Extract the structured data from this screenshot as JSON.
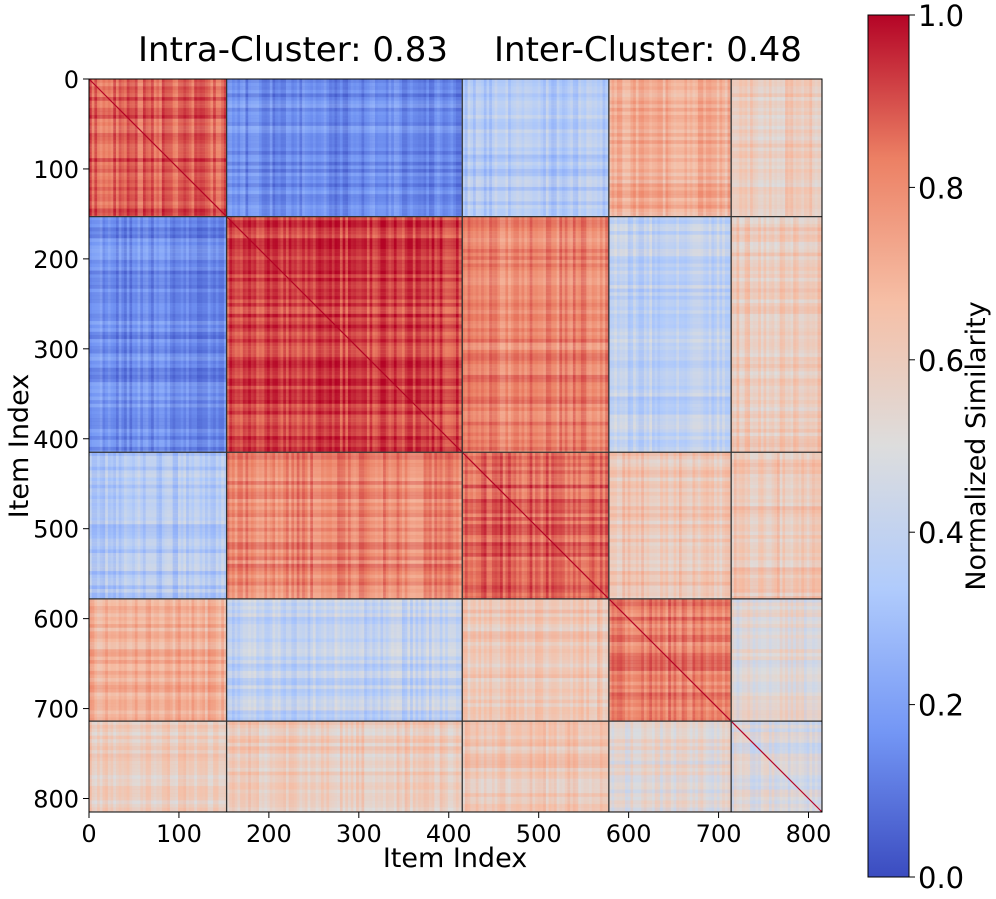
{
  "chart_data": {
    "type": "heatmap",
    "title_left": "Intra-Cluster: 0.83",
    "title_right": "Inter-Cluster: 0.48",
    "xlabel": "Item Index",
    "ylabel": "Item Index",
    "n_items": 815,
    "xlim": [
      0,
      815
    ],
    "ylim": [
      815,
      0
    ],
    "x_ticks": [
      "0",
      "100",
      "200",
      "300",
      "400",
      "500",
      "600",
      "700",
      "800"
    ],
    "y_ticks": [
      "0",
      "100",
      "200",
      "300",
      "400",
      "500",
      "600",
      "700",
      "800"
    ],
    "cluster_boundaries": [
      0,
      153,
      415,
      578,
      714,
      815
    ],
    "block_mean_similarity": [
      [
        0.88,
        0.15,
        0.35,
        0.7,
        0.6
      ],
      [
        0.15,
        0.93,
        0.8,
        0.4,
        0.6
      ],
      [
        0.35,
        0.8,
        0.87,
        0.62,
        0.62
      ],
      [
        0.7,
        0.4,
        0.62,
        0.82,
        0.52
      ],
      [
        0.6,
        0.6,
        0.62,
        0.52,
        0.48
      ]
    ],
    "colormap": "coolwarm",
    "colormap_stops": [
      "#3b4cc0",
      "#7396f5",
      "#b0cbfc",
      "#dddddd",
      "#f6bfa6",
      "#ec8064",
      "#b40426"
    ],
    "colorbar": {
      "label": "Normalized Similarity",
      "range": [
        0.0,
        1.0
      ],
      "ticks": [
        "0.0",
        "0.2",
        "0.4",
        "0.6",
        "0.8",
        "1.0"
      ]
    },
    "grid": false
  }
}
